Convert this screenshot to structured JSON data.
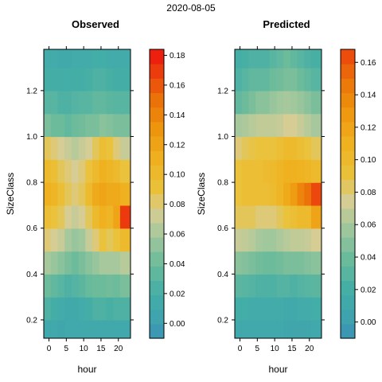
{
  "page_title": "2020-08-05",
  "chart_data": [
    {
      "type": "heatmap",
      "title": "Observed",
      "xlabel": "hour",
      "ylabel": "SizeClass",
      "xlim": [
        -1.5,
        23.5
      ],
      "ylim": [
        0.12,
        1.38
      ],
      "x_ticks": [
        0,
        5,
        10,
        15,
        20
      ],
      "y_ticks": [
        0.2,
        0.4,
        0.6,
        0.8,
        1.0,
        1.2
      ],
      "x_tick_labels": [
        "0",
        "5",
        "10",
        "15",
        "20"
      ],
      "y_tick_labels": [
        "0.2",
        "0.4",
        "0.6",
        "0.8",
        "1.0",
        "1.2"
      ],
      "colorbar": {
        "min": -0.01,
        "max": 0.184,
        "ticks": [
          0.0,
          0.02,
          0.04,
          0.06,
          0.08,
          0.1,
          0.12,
          0.14,
          0.16,
          0.18
        ],
        "tick_labels": [
          "0.00",
          "0.02",
          "0.04",
          "0.06",
          "0.08",
          "0.10",
          "0.12",
          "0.14",
          "0.16",
          "0.18"
        ]
      },
      "legend": "right",
      "grid": false,
      "hours": [
        0,
        2,
        4,
        6,
        8,
        10,
        12,
        14,
        16,
        18,
        20,
        22
      ],
      "size_classes": [
        0.15,
        0.25,
        0.35,
        0.45,
        0.55,
        0.65,
        0.75,
        0.85,
        0.95,
        1.05,
        1.15,
        1.25,
        1.35
      ],
      "values": [
        [
          0.01,
          0.01,
          0.008,
          0.01,
          0.01,
          0.01,
          0.012,
          0.01,
          0.01,
          0.01,
          0.01,
          0.01
        ],
        [
          0.025,
          0.02,
          0.015,
          0.012,
          0.012,
          0.015,
          0.02,
          0.025,
          0.025,
          0.022,
          0.025,
          0.025
        ],
        [
          0.04,
          0.035,
          0.03,
          0.025,
          0.028,
          0.032,
          0.038,
          0.04,
          0.04,
          0.042,
          0.04,
          0.045
        ],
        [
          0.06,
          0.055,
          0.05,
          0.045,
          0.04,
          0.045,
          0.05,
          0.055,
          0.06,
          0.06,
          0.06,
          0.065
        ],
        [
          0.08,
          0.075,
          0.07,
          0.06,
          0.055,
          0.058,
          0.07,
          0.08,
          0.09,
          0.085,
          0.09,
          0.1
        ],
        [
          0.095,
          0.09,
          0.085,
          0.075,
          0.07,
          0.075,
          0.085,
          0.1,
          0.11,
          0.105,
          0.12,
          0.17
        ],
        [
          0.11,
          0.105,
          0.095,
          0.085,
          0.08,
          0.085,
          0.1,
          0.115,
          0.12,
          0.115,
          0.115,
          0.11
        ],
        [
          0.1,
          0.095,
          0.085,
          0.08,
          0.075,
          0.08,
          0.09,
          0.1,
          0.11,
          0.105,
          0.1,
          0.09
        ],
        [
          0.085,
          0.08,
          0.075,
          0.07,
          0.065,
          0.07,
          0.075,
          0.085,
          0.095,
          0.09,
          0.08,
          0.07
        ],
        [
          0.045,
          0.04,
          0.04,
          0.035,
          0.04,
          0.042,
          0.045,
          0.045,
          0.05,
          0.048,
          0.045,
          0.045
        ],
        [
          0.03,
          0.03,
          0.025,
          0.025,
          0.028,
          0.03,
          0.03,
          0.035,
          0.035,
          0.032,
          0.03,
          0.03
        ],
        [
          0.02,
          0.02,
          0.02,
          0.018,
          0.02,
          0.02,
          0.022,
          0.025,
          0.025,
          0.022,
          0.02,
          0.02
        ],
        [
          0.015,
          0.015,
          0.012,
          0.012,
          0.015,
          0.015,
          0.015,
          0.018,
          0.018,
          0.015,
          0.015,
          0.015
        ]
      ]
    },
    {
      "type": "heatmap",
      "title": "Predicted",
      "xlabel": "hour",
      "ylabel": "SizeClass",
      "xlim": [
        -1.5,
        23.5
      ],
      "ylim": [
        0.12,
        1.38
      ],
      "x_ticks": [
        0,
        5,
        10,
        15,
        20
      ],
      "y_ticks": [
        0.2,
        0.4,
        0.6,
        0.8,
        1.0,
        1.2
      ],
      "x_tick_labels": [
        "0",
        "5",
        "10",
        "15",
        "20"
      ],
      "y_tick_labels": [
        "0.2",
        "0.4",
        "0.6",
        "0.8",
        "1.0",
        "1.2"
      ],
      "colorbar": {
        "min": -0.01,
        "max": 0.168,
        "ticks": [
          0.0,
          0.02,
          0.04,
          0.06,
          0.08,
          0.1,
          0.12,
          0.14,
          0.16
        ],
        "tick_labels": [
          "0.00",
          "0.02",
          "0.04",
          "0.06",
          "0.08",
          "0.10",
          "0.12",
          "0.14",
          "0.16"
        ]
      },
      "legend": "right",
      "grid": false,
      "hours": [
        0,
        2,
        4,
        6,
        8,
        10,
        12,
        14,
        16,
        18,
        20,
        22
      ],
      "size_classes": [
        0.15,
        0.25,
        0.35,
        0.45,
        0.55,
        0.65,
        0.75,
        0.85,
        0.95,
        1.05,
        1.15,
        1.25,
        1.35
      ],
      "values": [
        [
          0.01,
          0.01,
          0.01,
          0.01,
          0.01,
          0.01,
          0.01,
          0.008,
          0.008,
          0.008,
          0.008,
          0.01
        ],
        [
          0.018,
          0.018,
          0.015,
          0.015,
          0.015,
          0.015,
          0.015,
          0.012,
          0.012,
          0.015,
          0.015,
          0.018
        ],
        [
          0.032,
          0.03,
          0.028,
          0.025,
          0.025,
          0.025,
          0.028,
          0.028,
          0.025,
          0.028,
          0.03,
          0.032
        ],
        [
          0.05,
          0.048,
          0.045,
          0.042,
          0.04,
          0.04,
          0.042,
          0.045,
          0.045,
          0.045,
          0.048,
          0.05
        ],
        [
          0.07,
          0.068,
          0.065,
          0.06,
          0.058,
          0.058,
          0.062,
          0.065,
          0.068,
          0.068,
          0.07,
          0.075
        ],
        [
          0.085,
          0.085,
          0.085,
          0.08,
          0.08,
          0.08,
          0.085,
          0.09,
          0.095,
          0.1,
          0.1,
          0.12
        ],
        [
          0.09,
          0.095,
          0.095,
          0.095,
          0.095,
          0.098,
          0.105,
          0.115,
          0.125,
          0.14,
          0.15,
          0.165
        ],
        [
          0.09,
          0.095,
          0.095,
          0.095,
          0.098,
          0.1,
          0.105,
          0.11,
          0.11,
          0.108,
          0.105,
          0.1
        ],
        [
          0.08,
          0.085,
          0.088,
          0.09,
          0.09,
          0.09,
          0.095,
          0.1,
          0.1,
          0.095,
          0.09,
          0.085
        ],
        [
          0.06,
          0.062,
          0.065,
          0.068,
          0.068,
          0.068,
          0.07,
          0.075,
          0.075,
          0.07,
          0.065,
          0.06
        ],
        [
          0.035,
          0.04,
          0.045,
          0.05,
          0.05,
          0.055,
          0.058,
          0.06,
          0.058,
          0.055,
          0.05,
          0.045
        ],
        [
          0.025,
          0.03,
          0.035,
          0.035,
          0.035,
          0.04,
          0.042,
          0.045,
          0.045,
          0.04,
          0.035,
          0.03
        ],
        [
          0.02,
          0.022,
          0.025,
          0.025,
          0.025,
          0.03,
          0.035,
          0.04,
          0.035,
          0.03,
          0.025,
          0.022
        ]
      ]
    }
  ],
  "palette": {
    "stops": [
      [
        -0.01,
        "#3B8FB5"
      ],
      [
        0.0,
        "#3EA1B0"
      ],
      [
        0.02,
        "#44AEA6"
      ],
      [
        0.04,
        "#6CBB9B"
      ],
      [
        0.06,
        "#A7C89C"
      ],
      [
        0.075,
        "#D6CD94"
      ],
      [
        0.09,
        "#EAC23C"
      ],
      [
        0.11,
        "#EFB11F"
      ],
      [
        0.13,
        "#EE960E"
      ],
      [
        0.15,
        "#EB7209"
      ],
      [
        0.17,
        "#EC3A0E"
      ],
      [
        0.185,
        "#EE0F12"
      ]
    ]
  }
}
